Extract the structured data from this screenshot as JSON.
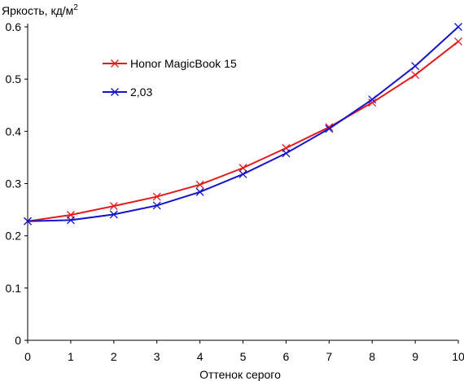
{
  "chart_data": {
    "type": "line",
    "title": "",
    "ylabel": "Яркость, кд/м",
    "ylabel_superscript": "2",
    "xlabel": "Оттенок серого",
    "xlim": [
      0,
      10
    ],
    "ylim": [
      0,
      0.6
    ],
    "x_ticks": [
      0,
      1,
      2,
      3,
      4,
      5,
      6,
      7,
      8,
      9,
      10
    ],
    "y_ticks": [
      0,
      0.1,
      0.2,
      0.3,
      0.4,
      0.5,
      0.6
    ],
    "x_tick_labels": [
      "0",
      "1",
      "2",
      "3",
      "4",
      "5",
      "6",
      "7",
      "8",
      "9",
      "10"
    ],
    "y_tick_labels": [
      "0",
      "0.1",
      "0.2",
      "0.3",
      "0.4",
      "0.5",
      "0.6"
    ],
    "grid": false,
    "legend_position": "top-left",
    "x": [
      0,
      1,
      2,
      3,
      4,
      5,
      6,
      7,
      8,
      9,
      10
    ],
    "series": [
      {
        "name": "Honor MagicBook 15",
        "color": "#e31a1c",
        "marker": "x",
        "values": [
          0.228,
          0.24,
          0.257,
          0.275,
          0.298,
          0.33,
          0.368,
          0.408,
          0.455,
          0.508,
          0.572
        ]
      },
      {
        "name": "2,03",
        "color": "#1414cc",
        "marker": "x",
        "values": [
          0.228,
          0.23,
          0.241,
          0.258,
          0.284,
          0.318,
          0.358,
          0.405,
          0.461,
          0.525,
          0.6
        ]
      }
    ]
  }
}
